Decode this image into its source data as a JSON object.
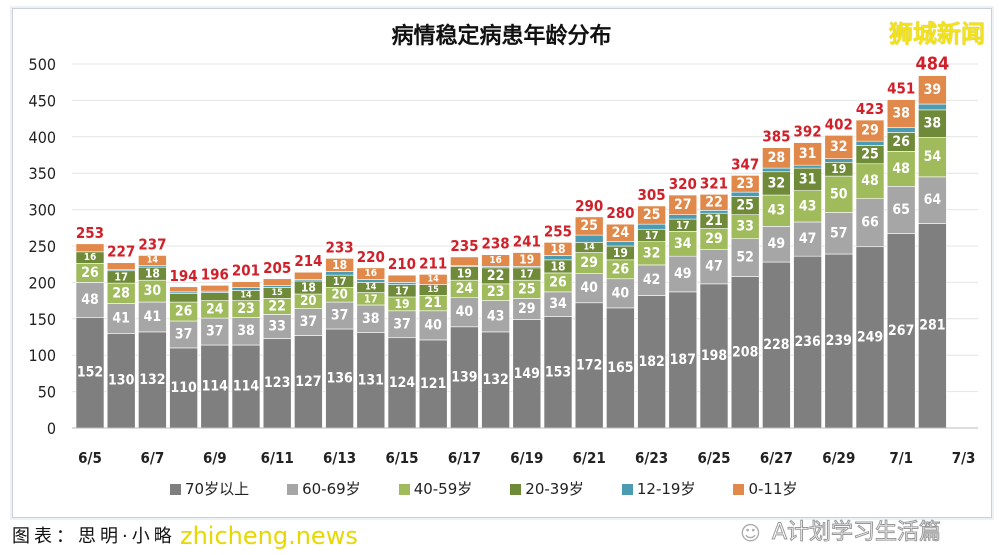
{
  "title": "病情稳定病患年龄分布",
  "brand": "狮城新闻",
  "caption": "图表：思明·小略",
  "watermark_site": "zhicheng.news",
  "watermark_account": "A计划学习生活篇",
  "chart_data": {
    "type": "stacked-bar",
    "title": "病情稳定病患年龄分布",
    "categories": [
      "6/5",
      "6/6",
      "6/7",
      "6/8",
      "6/9",
      "6/10",
      "6/11",
      "6/12",
      "6/13",
      "6/14",
      "6/15",
      "6/16",
      "6/17",
      "6/18",
      "6/19",
      "6/20",
      "6/21",
      "6/22",
      "6/23",
      "6/24",
      "6/25",
      "6/26",
      "6/27",
      "6/28",
      "6/29",
      "6/30",
      "7/1",
      "7/2",
      "7/3"
    ],
    "x_tick_labels": [
      "6/5",
      "6/7",
      "6/9",
      "6/11",
      "6/13",
      "6/15",
      "6/17",
      "6/19",
      "6/21",
      "6/23",
      "6/25",
      "6/27",
      "6/29",
      "7/1",
      "7/3"
    ],
    "ylim": [
      0,
      500
    ],
    "y_ticks": [
      0,
      50,
      100,
      150,
      200,
      250,
      300,
      350,
      400,
      450,
      500
    ],
    "grid": true,
    "legend_position": "bottom",
    "series": [
      {
        "name": "70岁以上",
        "color": "#7f7f7f",
        "label_color": "#ffffff",
        "values": [
          152,
          130,
          132,
          110,
          114,
          114,
          123,
          127,
          136,
          131,
          124,
          121,
          139,
          132,
          149,
          153,
          172,
          165,
          182,
          187,
          198,
          208,
          228,
          236,
          239,
          249,
          267,
          281,
          null
        ]
      },
      {
        "name": "60-69岁",
        "color": "#a6a6a6",
        "label_color": "#ffffff",
        "values": [
          48,
          41,
          41,
          37,
          37,
          38,
          33,
          37,
          37,
          38,
          37,
          40,
          40,
          43,
          29,
          34,
          40,
          40,
          42,
          49,
          47,
          52,
          49,
          47,
          57,
          66,
          65,
          64,
          null
        ]
      },
      {
        "name": "40-59岁",
        "color": "#9fbb5c",
        "label_color": "#ffffff",
        "values": [
          26,
          28,
          30,
          26,
          24,
          23,
          22,
          20,
          20,
          17,
          19,
          21,
          24,
          23,
          25,
          26,
          29,
          26,
          32,
          34,
          29,
          33,
          43,
          43,
          50,
          48,
          48,
          54,
          null
        ]
      },
      {
        "name": "20-39岁",
        "color": "#6f8a38",
        "label_color": "#ffffff",
        "values": [
          16,
          17,
          18,
          12,
          11,
          14,
          15,
          18,
          17,
          14,
          17,
          15,
          19,
          22,
          17,
          18,
          14,
          19,
          17,
          17,
          21,
          25,
          32,
          31,
          19,
          25,
          26,
          38,
          null
        ]
      },
      {
        "name": "12-19岁",
        "color": "#4b9bb3",
        "label_color": "#ffffff",
        "values": [
          0,
          2,
          2,
          2,
          2,
          4,
          3,
          2,
          5,
          4,
          3,
          0,
          1,
          2,
          2,
          6,
          10,
          6,
          7,
          6,
          4,
          6,
          5,
          4,
          5,
          6,
          7,
          8,
          null
        ]
      },
      {
        "name": "0-11岁",
        "color": "#e0894a",
        "label_color": "#ffffff",
        "values": [
          11,
          9,
          14,
          7,
          8,
          8,
          9,
          10,
          18,
          16,
          10,
          14,
          12,
          16,
          19,
          18,
          25,
          24,
          25,
          27,
          22,
          23,
          28,
          31,
          32,
          29,
          38,
          39,
          null
        ]
      },
      {
        "name": "total",
        "values": [
          253,
          227,
          237,
          194,
          196,
          201,
          205,
          214,
          233,
          220,
          210,
          211,
          235,
          238,
          241,
          255,
          290,
          280,
          305,
          320,
          321,
          347,
          385,
          392,
          402,
          423,
          451,
          484,
          null
        ]
      }
    ],
    "total_label_color": "#d0202a"
  }
}
